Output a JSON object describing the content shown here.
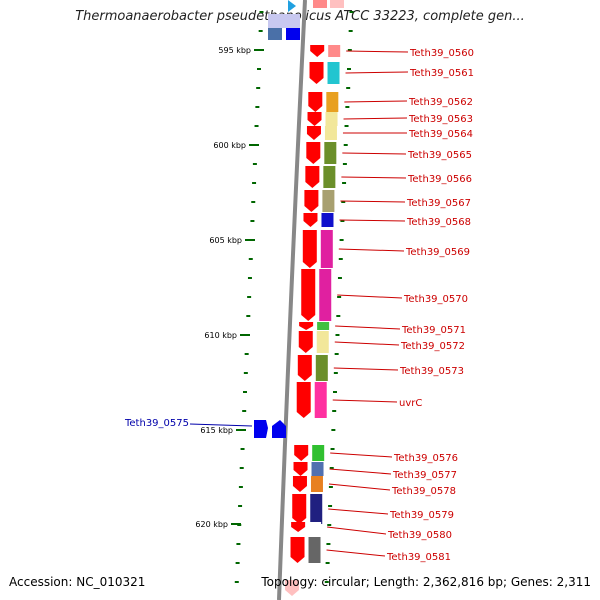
{
  "title": "Thermoanaerobacter pseudethanolicus ATCC 33223, complete gen...",
  "accession": "Accession: NC_010321",
  "topology": "Topology: circular; Length: 2,362,816 bp; Genes: 2,311",
  "colors": {
    "forward": "#ff0000",
    "reverse": "#0000ff",
    "backbone": "#888888",
    "tick": "#006600",
    "label_right": "#cc0000",
    "label_left": "#0000aa"
  },
  "ticks": [
    {
      "label": "595 kbp"
    },
    {
      "label": "600 kbp"
    },
    {
      "label": "605 kbp"
    },
    {
      "label": "610 kbp"
    },
    {
      "label": "615 kbp"
    },
    {
      "label": "620 kbp"
    }
  ],
  "genes_right": [
    {
      "label": "Teth39_0560",
      "cog_color": "#ff8a8a"
    },
    {
      "label": "Teth39_0561",
      "cog_color": "#22c5d0"
    },
    {
      "label": "Teth39_0562",
      "cog_color": "#e8a020"
    },
    {
      "label": "Teth39_0563",
      "cog_color": "#f2e79a"
    },
    {
      "label": "Teth39_0564",
      "cog_color": "#f2e79a"
    },
    {
      "label": "Teth39_0565",
      "cog_color": "#6b8f2a"
    },
    {
      "label": "Teth39_0566",
      "cog_color": "#6b8f2a"
    },
    {
      "label": "Teth39_0567",
      "cog_color": "#a8a070"
    },
    {
      "label": "Teth39_0568",
      "cog_color": "#1010cc"
    },
    {
      "label": "Teth39_0569",
      "cog_color": "#e020a0"
    },
    {
      "label": "Teth39_0570",
      "cog_color": "#e020a0"
    },
    {
      "label": "Teth39_0571",
      "cog_color": "#40c040"
    },
    {
      "label": "Teth39_0572",
      "cog_color": "#f2e79a"
    },
    {
      "label": "Teth39_0573",
      "cog_color": "#6b8f2a"
    },
    {
      "label": "uvrC",
      "cog_color": "#ff30a0"
    },
    {
      "label": "Teth39_0576",
      "cog_color": "#30c030"
    },
    {
      "label": "Teth39_0577",
      "cog_color": "#5070b0"
    },
    {
      "label": "Teth39_0578",
      "cog_color": "#e88020"
    },
    {
      "label": "Teth39_0579",
      "cog_color": "#202080"
    },
    {
      "label": "Teth39_0580",
      "cog_color": "#ffffff"
    },
    {
      "label": "Teth39_0581",
      "cog_color": "#666666"
    }
  ],
  "genes_left": [
    {
      "label": "Teth39_0575",
      "cog_color": "#0000ee"
    }
  ]
}
